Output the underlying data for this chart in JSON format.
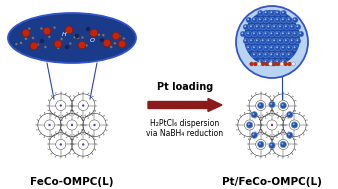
{
  "left_label": "FeCo-OMPC(L)",
  "right_label": "Pt/FeCo-OMPC(L)",
  "arrow_label_main": "Pt loading",
  "arrow_label_line2": "H₂PtCl₆ dispersion",
  "arrow_label_line3": "via NaBH₄ reduction",
  "arrow_color": "#8B1A1A",
  "label_fontsize": 7.5,
  "arrow_main_fontsize": 7,
  "arrow_sub_fontsize": 5.5,
  "bg_color": "#ffffff",
  "left_inset_bg": "#1a3a8a",
  "right_inset_bg_outer": "#aaccee",
  "right_inset_bg_inner": "#1a4aaa",
  "pore_edge": "#333333",
  "pt_sphere_color": "#2255aa",
  "pt_sphere_edge": "#6688cc",
  "pt_dot_color": "#2255aa",
  "atom_red": "#cc2200",
  "atom_grey": "#777777",
  "atom_blue_dark": "#1a2255",
  "connect_line_color": "#2244bb"
}
